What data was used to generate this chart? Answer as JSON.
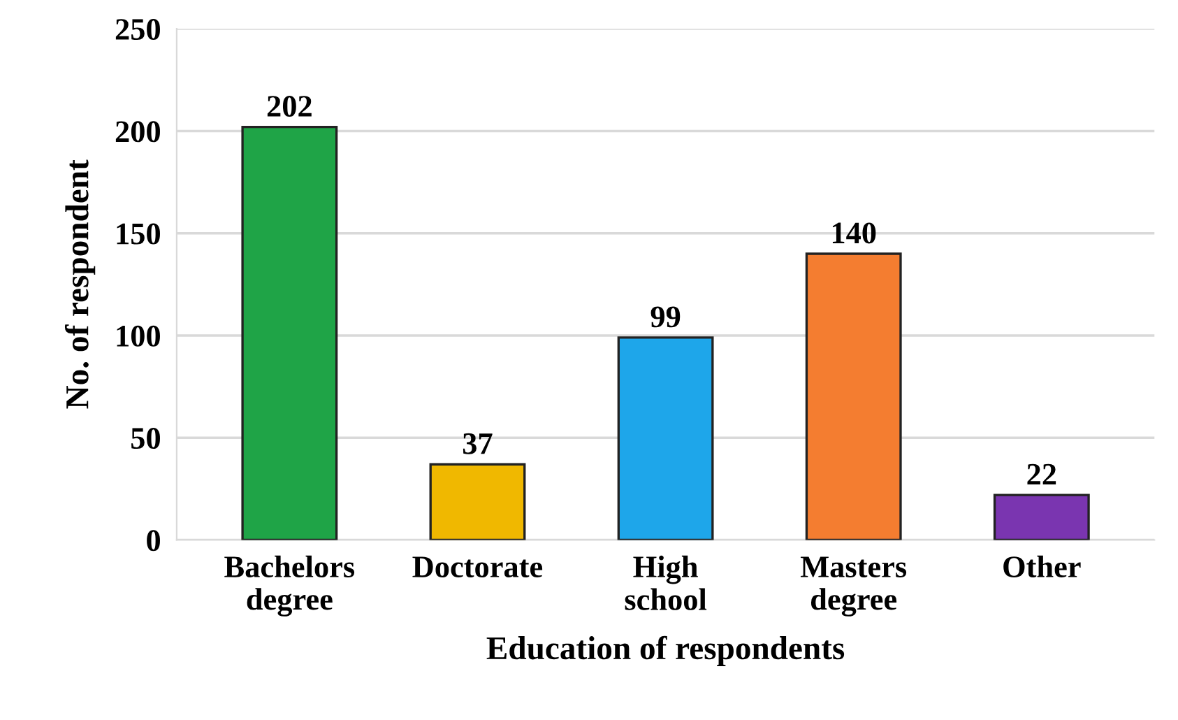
{
  "chart_data": {
    "type": "bar",
    "xlabel": "Education of respondents",
    "ylabel": "No. of respondent",
    "categories": [
      "Bachelors\ndegree",
      "Doctorate",
      "High\nschool",
      "Masters\ndegree",
      "Other"
    ],
    "values": [
      202,
      37,
      99,
      140,
      22
    ],
    "colors": [
      "#1fa447",
      "#f0b800",
      "#1ea6ea",
      "#f47d30",
      "#7a35b0"
    ],
    "ylim": [
      0,
      250
    ],
    "yticks": [
      0,
      50,
      100,
      150,
      200,
      250
    ],
    "grid": "y",
    "data_labels": true
  }
}
